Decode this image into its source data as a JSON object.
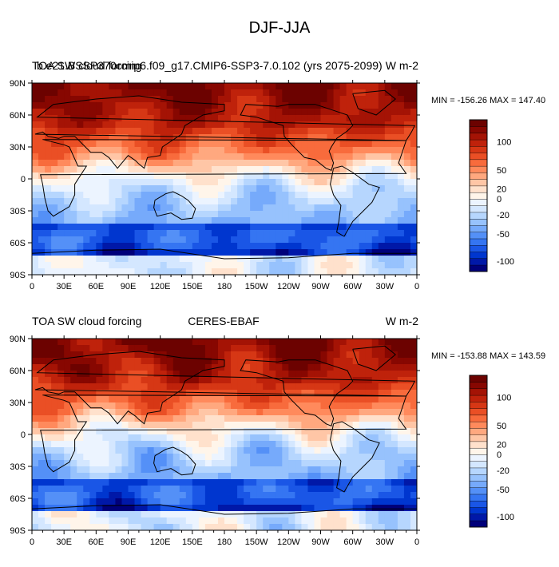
{
  "figure_title": "DJF-JJA",
  "colors": {
    "contour_levels": [
      -120,
      -110,
      -100,
      -90,
      -80,
      -70,
      -60,
      -50,
      -40,
      -30,
      -20,
      -10,
      0,
      10,
      20,
      30,
      40,
      50,
      60,
      70,
      80,
      90,
      100,
      110,
      120
    ],
    "palette": [
      "#00007a",
      "#0018a8",
      "#0036cf",
      "#1a56e6",
      "#3575f2",
      "#5490f7",
      "#76aafb",
      "#97c2fd",
      "#b6d6fe",
      "#d4e7ff",
      "#ecf4ff",
      "#fff5ea",
      "#ffe1cc",
      "#ffc6a6",
      "#ffa87f",
      "#ff8a5c",
      "#f86b3c",
      "#ea4f25",
      "#d63715",
      "#bf220b",
      "#a41305",
      "#870701",
      "#6c0200"
    ]
  },
  "chart_data": [
    {
      "type": "heatmap",
      "title_left": "TOA SW cloud forcing",
      "title_center": "b.e21.BSSP370cmip6.f09_g17.CMIP6-SSP3-7.0.102 (yrs 2075-2099)",
      "units": "W m-2",
      "stats": "MIN = -156.26 MAX = 147.40",
      "min": -156.26,
      "max": 147.4,
      "x_ticks": [
        "0",
        "30E",
        "60E",
        "90E",
        "120E",
        "150E",
        "180",
        "150W",
        "120W",
        "90W",
        "60W",
        "30W",
        "0"
      ],
      "y_ticks": [
        "90N",
        "60N",
        "30N",
        "0",
        "30S",
        "60S",
        "90S"
      ],
      "xlim": [
        0,
        360
      ],
      "ylim": [
        -90,
        90
      ],
      "colorbar_labels": [
        "100",
        "50",
        "20",
        "0",
        "-20",
        "-50",
        "-100"
      ]
    },
    {
      "type": "heatmap",
      "title_left": "TOA SW cloud forcing",
      "title_center": "CERES-EBAF",
      "units": "W m-2",
      "stats": "MIN = -153.88 MAX = 143.59",
      "min": -153.88,
      "max": 143.59,
      "x_ticks": [
        "0",
        "30E",
        "60E",
        "90E",
        "120E",
        "150E",
        "180",
        "150W",
        "120W",
        "90W",
        "60W",
        "30W",
        "0"
      ],
      "y_ticks": [
        "90N",
        "60N",
        "30N",
        "0",
        "30S",
        "60S",
        "90S"
      ],
      "xlim": [
        0,
        360
      ],
      "ylim": [
        -90,
        90
      ],
      "colorbar_labels": [
        "100",
        "50",
        "20",
        "0",
        "-20",
        "-50",
        "-100"
      ]
    }
  ]
}
